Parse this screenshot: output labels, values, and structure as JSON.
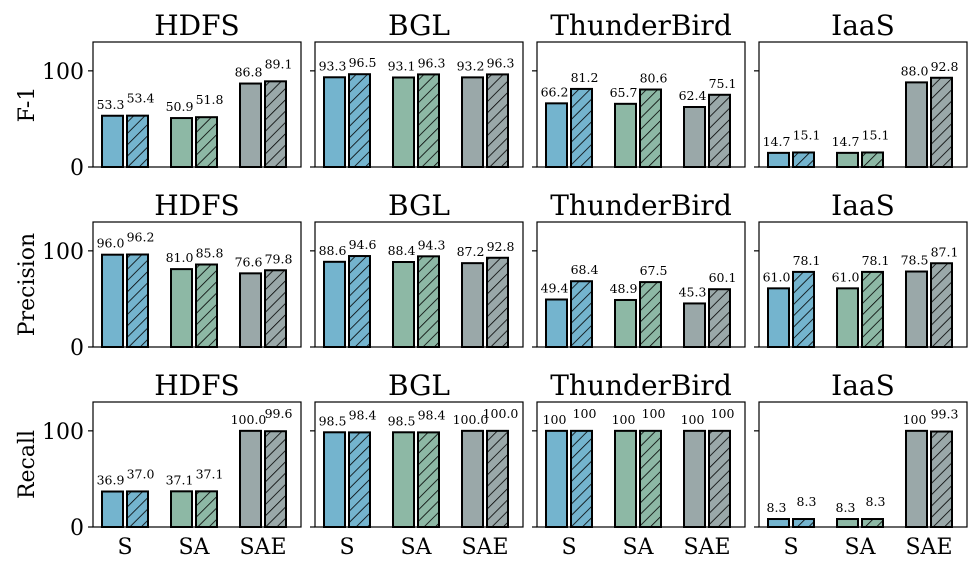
{
  "chart_data": {
    "type": "bar",
    "layout": "3x4 grid of grouped bar charts",
    "categories": [
      "S",
      "SA",
      "SAE"
    ],
    "series": [
      {
        "name": "solid",
        "pattern": "none"
      },
      {
        "name": "hatched",
        "pattern": "diagonal-hatch"
      }
    ],
    "category_colors": {
      "S": "#74b4ce",
      "SA": "#8db8a5",
      "SAE": "#9aa8a9"
    },
    "ylim": [
      0,
      130
    ],
    "yticks": [
      0,
      100
    ],
    "rows": [
      {
        "ylabel": "F-1",
        "panels": [
          {
            "title": "HDFS",
            "values": [
              [
                53.3,
                53.4
              ],
              [
                50.9,
                51.8
              ],
              [
                86.8,
                89.1
              ]
            ],
            "labels": [
              [
                "53.3",
                "53.4"
              ],
              [
                "50.9",
                "51.8"
              ],
              [
                "86.8",
                "89.1"
              ]
            ]
          },
          {
            "title": "BGL",
            "values": [
              [
                93.3,
                96.5
              ],
              [
                93.1,
                96.3
              ],
              [
                93.2,
                96.3
              ]
            ],
            "labels": [
              [
                "93.3",
                "96.5"
              ],
              [
                "93.1",
                "96.3"
              ],
              [
                "93.2",
                "96.3"
              ]
            ]
          },
          {
            "title": "ThunderBird",
            "values": [
              [
                66.2,
                81.2
              ],
              [
                65.7,
                80.6
              ],
              [
                62.4,
                75.1
              ]
            ],
            "labels": [
              [
                "66.2",
                "81.2"
              ],
              [
                "65.7",
                "80.6"
              ],
              [
                "62.4",
                "75.1"
              ]
            ]
          },
          {
            "title": "IaaS",
            "values": [
              [
                14.7,
                15.1
              ],
              [
                14.7,
                15.1
              ],
              [
                88.0,
                92.8
              ]
            ],
            "labels": [
              [
                "14.7",
                "15.1"
              ],
              [
                "14.7",
                "15.1"
              ],
              [
                "88.0",
                "92.8"
              ]
            ]
          }
        ]
      },
      {
        "ylabel": "Precision",
        "panels": [
          {
            "title": "HDFS",
            "values": [
              [
                96.0,
                96.2
              ],
              [
                81.0,
                85.8
              ],
              [
                76.6,
                79.8
              ]
            ],
            "labels": [
              [
                "96.0",
                "96.2"
              ],
              [
                "81.0",
                "85.8"
              ],
              [
                "76.6",
                "79.8"
              ]
            ]
          },
          {
            "title": "BGL",
            "values": [
              [
                88.6,
                94.6
              ],
              [
                88.4,
                94.3
              ],
              [
                87.2,
                92.8
              ]
            ],
            "labels": [
              [
                "88.6",
                "94.6"
              ],
              [
                "88.4",
                "94.3"
              ],
              [
                "87.2",
                "92.8"
              ]
            ]
          },
          {
            "title": "ThunderBird",
            "values": [
              [
                49.4,
                68.4
              ],
              [
                48.9,
                67.5
              ],
              [
                45.3,
                60.1
              ]
            ],
            "labels": [
              [
                "49.4",
                "68.4"
              ],
              [
                "48.9",
                "67.5"
              ],
              [
                "45.3",
                "60.1"
              ]
            ]
          },
          {
            "title": "IaaS",
            "values": [
              [
                61.0,
                78.1
              ],
              [
                61.0,
                78.1
              ],
              [
                78.5,
                87.1
              ]
            ],
            "labels": [
              [
                "61.0",
                "78.1"
              ],
              [
                "61.0",
                "78.1"
              ],
              [
                "78.5",
                "87.1"
              ]
            ]
          }
        ]
      },
      {
        "ylabel": "Recall",
        "panels": [
          {
            "title": "HDFS",
            "values": [
              [
                36.9,
                37.0
              ],
              [
                37.1,
                37.1
              ],
              [
                100.0,
                99.6
              ]
            ],
            "labels": [
              [
                "36.9",
                "37.0"
              ],
              [
                "37.1",
                "37.1"
              ],
              [
                "100.0",
                "99.6"
              ]
            ]
          },
          {
            "title": "BGL",
            "values": [
              [
                98.5,
                98.4
              ],
              [
                98.5,
                98.4
              ],
              [
                100.0,
                100.0
              ]
            ],
            "labels": [
              [
                "98.5",
                "98.4"
              ],
              [
                "98.5",
                "98.4"
              ],
              [
                "100.0",
                "100.0"
              ]
            ]
          },
          {
            "title": "ThunderBird",
            "values": [
              [
                100,
                100
              ],
              [
                100,
                100
              ],
              [
                100,
                100
              ]
            ],
            "labels": [
              [
                "100",
                "100"
              ],
              [
                "100",
                "100"
              ],
              [
                "100",
                "100"
              ]
            ]
          },
          {
            "title": "IaaS",
            "values": [
              [
                8.3,
                8.3
              ],
              [
                8.3,
                8.3
              ],
              [
                100,
                99.3
              ]
            ],
            "labels": [
              [
                "8.3",
                "8.3"
              ],
              [
                "8.3",
                "8.3"
              ],
              [
                "100",
                "99.3"
              ]
            ]
          }
        ]
      }
    ]
  }
}
